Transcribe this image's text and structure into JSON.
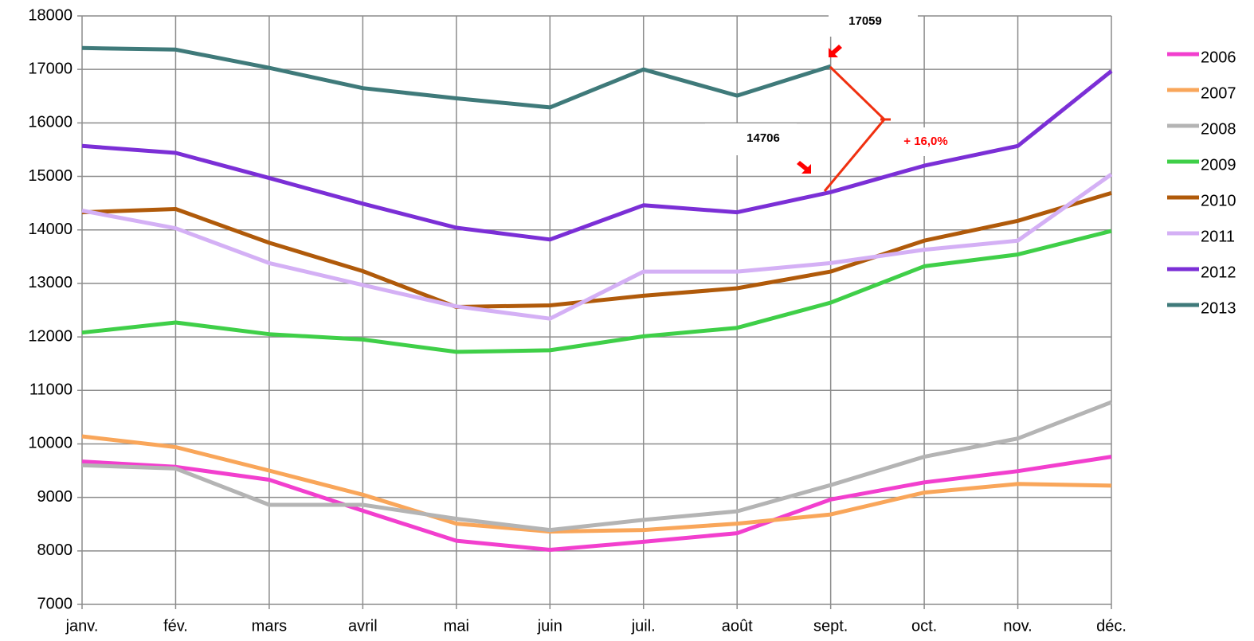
{
  "chart_data": {
    "type": "line",
    "categories": [
      "janv.",
      "fév.",
      "mars",
      "avril",
      "mai",
      "juin",
      "juil.",
      "août",
      "sept.",
      "oct.",
      "nov.",
      "déc."
    ],
    "series": [
      {
        "name": "2006",
        "color": "#f23fce",
        "values": [
          9670,
          9570,
          9330,
          8750,
          8190,
          8020,
          8170,
          8330,
          8960,
          9280,
          9490,
          9760
        ]
      },
      {
        "name": "2007",
        "color": "#f9a65a",
        "values": [
          10140,
          9940,
          9500,
          9050,
          8510,
          8360,
          8390,
          8510,
          8680,
          9090,
          9250,
          9220
        ]
      },
      {
        "name": "2008",
        "color": "#b4b4b4",
        "values": [
          9600,
          9540,
          8860,
          8860,
          8600,
          8390,
          8580,
          8740,
          9230,
          9760,
          10100,
          10780
        ]
      },
      {
        "name": "2009",
        "color": "#3fcf48",
        "values": [
          12080,
          12270,
          12050,
          11950,
          11720,
          11750,
          12010,
          12170,
          12640,
          13320,
          13540,
          13980
        ]
      },
      {
        "name": "2010",
        "color": "#b05a0a",
        "values": [
          14330,
          14390,
          13760,
          13230,
          12560,
          12590,
          12770,
          12910,
          13220,
          13800,
          14170,
          14690
        ]
      },
      {
        "name": "2011",
        "color": "#d4b0f5",
        "values": [
          14360,
          14030,
          13380,
          12970,
          12570,
          12340,
          13220,
          13220,
          13380,
          13630,
          13800,
          15040
        ]
      },
      {
        "name": "2012",
        "color": "#7b2fd6",
        "values": [
          15570,
          15440,
          14970,
          14490,
          14040,
          13820,
          14460,
          14330,
          14706,
          15200,
          15570,
          16970
        ]
      },
      {
        "name": "2013",
        "color": "#3f7a7a",
        "values": [
          17400,
          17370,
          17030,
          16650,
          16460,
          16290,
          17000,
          16510,
          17059,
          null,
          null,
          null
        ]
      }
    ],
    "ylim": [
      7000,
      18000
    ],
    "yticks": [
      7000,
      8000,
      9000,
      10000,
      11000,
      12000,
      13000,
      14000,
      15000,
      16000,
      17000,
      18000
    ],
    "grid": true,
    "legend": "right",
    "annotations": [
      "17059",
      "14706",
      "+ 16,0%"
    ]
  }
}
